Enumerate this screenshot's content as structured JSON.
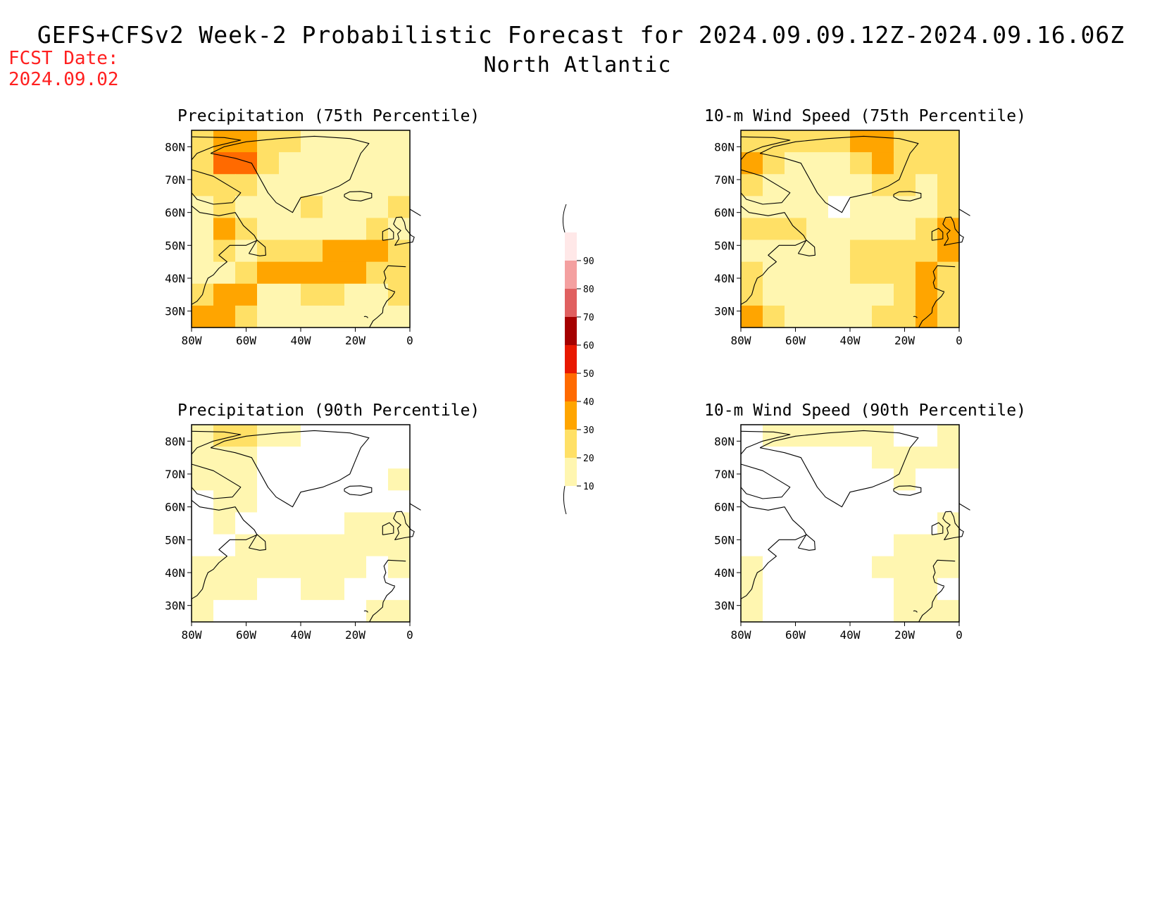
{
  "header": {
    "title": "GEFS+CFSv2 Week-2 Probabilistic Forecast for 2024.09.09.12Z-2024.09.16.06Z",
    "subtitle": "North Atlantic",
    "fcst_date_label": "FCST Date:",
    "fcst_date_value": "2024.09.02"
  },
  "colors": {
    "fcst_date": "#ff2020",
    "bins": [
      "#ffffff",
      "#fff6b0",
      "#ffe066",
      "#ffa500",
      "#ff6a00",
      "#e81800",
      "#a50000",
      "#e06060",
      "#f4a0a0",
      "#ffe8e8"
    ]
  },
  "colorbar": {
    "levels": [
      10,
      20,
      30,
      40,
      50,
      60,
      70,
      80,
      90
    ],
    "tick_labels": [
      "10",
      "20",
      "30",
      "40",
      "50",
      "60",
      "70",
      "80",
      "90"
    ]
  },
  "chart_data": [
    {
      "type": "heatmap",
      "title": "Precipitation (75th Percentile)",
      "x_ticks": [
        "80W",
        "60W",
        "40W",
        "20W",
        "0"
      ],
      "y_ticks": [
        "80N",
        "70N",
        "60N",
        "50N",
        "40N",
        "30N"
      ],
      "xlim": [
        -80,
        0
      ],
      "ylim": [
        25,
        85
      ],
      "grid": [
        [
          2,
          3,
          3,
          2,
          2,
          1,
          1,
          1,
          1,
          1
        ],
        [
          2,
          4,
          4,
          2,
          1,
          1,
          1,
          1,
          1,
          1
        ],
        [
          2,
          2,
          2,
          1,
          1,
          1,
          1,
          1,
          1,
          1
        ],
        [
          1,
          2,
          1,
          1,
          1,
          2,
          1,
          1,
          1,
          2
        ],
        [
          1,
          3,
          2,
          1,
          1,
          1,
          1,
          1,
          2,
          1
        ],
        [
          1,
          2,
          1,
          2,
          2,
          2,
          3,
          3,
          3,
          2
        ],
        [
          1,
          1,
          2,
          3,
          3,
          3,
          3,
          3,
          2,
          2
        ],
        [
          2,
          3,
          3,
          1,
          1,
          2,
          2,
          1,
          1,
          2
        ],
        [
          3,
          3,
          2,
          1,
          1,
          1,
          1,
          1,
          1,
          1
        ]
      ]
    },
    {
      "type": "heatmap",
      "title": "10-m Wind Speed (75th Percentile)",
      "x_ticks": [
        "80W",
        "60W",
        "40W",
        "20W",
        "0"
      ],
      "y_ticks": [
        "80N",
        "70N",
        "60N",
        "50N",
        "40N",
        "30N"
      ],
      "xlim": [
        -80,
        0
      ],
      "ylim": [
        25,
        85
      ],
      "grid": [
        [
          2,
          2,
          2,
          2,
          2,
          3,
          3,
          2,
          2,
          2
        ],
        [
          3,
          2,
          1,
          1,
          1,
          2,
          3,
          2,
          2,
          2
        ],
        [
          2,
          1,
          1,
          1,
          1,
          1,
          2,
          2,
          1,
          2
        ],
        [
          1,
          1,
          1,
          1,
          0,
          1,
          1,
          1,
          1,
          2
        ],
        [
          2,
          2,
          2,
          1,
          1,
          1,
          1,
          1,
          2,
          3
        ],
        [
          1,
          1,
          1,
          1,
          1,
          2,
          2,
          2,
          2,
          3
        ],
        [
          2,
          1,
          1,
          1,
          1,
          2,
          2,
          2,
          3,
          2
        ],
        [
          2,
          1,
          1,
          1,
          1,
          1,
          1,
          2,
          3,
          2
        ],
        [
          3,
          2,
          1,
          1,
          1,
          1,
          2,
          2,
          3,
          2
        ]
      ]
    },
    {
      "type": "heatmap",
      "title": "Precipitation (90th Percentile)",
      "x_ticks": [
        "80W",
        "60W",
        "40W",
        "20W",
        "0"
      ],
      "y_ticks": [
        "80N",
        "70N",
        "60N",
        "50N",
        "40N",
        "30N"
      ],
      "xlim": [
        -80,
        0
      ],
      "ylim": [
        25,
        85
      ],
      "grid": [
        [
          1,
          2,
          2,
          1,
          1,
          0,
          0,
          0,
          0,
          0
        ],
        [
          1,
          1,
          1,
          0,
          0,
          0,
          0,
          0,
          0,
          0
        ],
        [
          1,
          1,
          1,
          0,
          0,
          0,
          0,
          0,
          0,
          1
        ],
        [
          0,
          1,
          1,
          0,
          0,
          0,
          0,
          0,
          0,
          0
        ],
        [
          0,
          1,
          0,
          0,
          0,
          0,
          0,
          1,
          1,
          1
        ],
        [
          0,
          0,
          1,
          1,
          1,
          1,
          1,
          1,
          1,
          1
        ],
        [
          1,
          1,
          1,
          1,
          1,
          1,
          1,
          1,
          0,
          1
        ],
        [
          1,
          1,
          1,
          0,
          0,
          1,
          1,
          0,
          0,
          0
        ],
        [
          1,
          0,
          0,
          0,
          0,
          0,
          0,
          0,
          1,
          1
        ]
      ]
    },
    {
      "type": "heatmap",
      "title": "10-m Wind Speed (90th Percentile)",
      "x_ticks": [
        "80W",
        "60W",
        "40W",
        "20W",
        "0"
      ],
      "y_ticks": [
        "80N",
        "70N",
        "60N",
        "50N",
        "40N",
        "30N"
      ],
      "xlim": [
        -80,
        0
      ],
      "ylim": [
        25,
        85
      ],
      "grid": [
        [
          0,
          1,
          1,
          1,
          1,
          1,
          1,
          0,
          0,
          1
        ],
        [
          0,
          0,
          0,
          0,
          0,
          0,
          1,
          1,
          1,
          1
        ],
        [
          0,
          0,
          0,
          0,
          0,
          0,
          0,
          1,
          0,
          0
        ],
        [
          0,
          0,
          0,
          0,
          0,
          0,
          0,
          0,
          0,
          0
        ],
        [
          0,
          0,
          0,
          0,
          0,
          0,
          0,
          0,
          0,
          1
        ],
        [
          0,
          0,
          0,
          0,
          0,
          0,
          0,
          1,
          1,
          1
        ],
        [
          1,
          0,
          0,
          0,
          0,
          0,
          1,
          1,
          1,
          1
        ],
        [
          1,
          0,
          0,
          0,
          0,
          0,
          0,
          1,
          1,
          0
        ],
        [
          1,
          0,
          0,
          0,
          0,
          0,
          0,
          1,
          1,
          1
        ]
      ]
    }
  ]
}
